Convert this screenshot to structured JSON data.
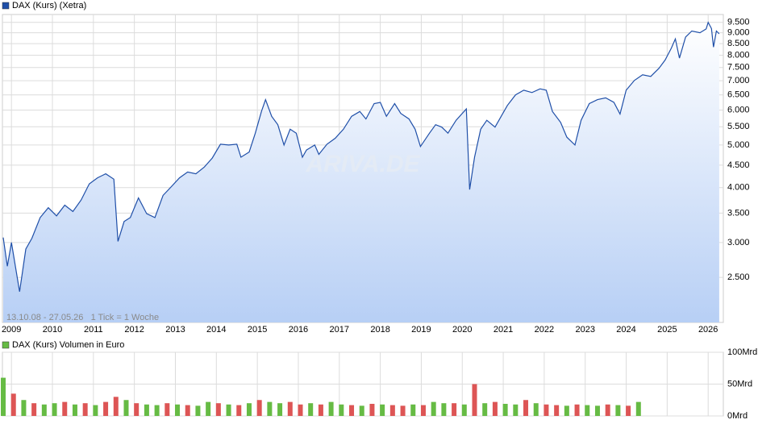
{
  "chart_data": [
    {
      "type": "line",
      "log_scale": true,
      "grid": true,
      "annotation": "13.10.08 - 27.05.26   1 Tick = 1 Woche",
      "watermark": "ARIVA.DE",
      "xlim": [
        2008.78,
        2026.37
      ],
      "xticks": [
        2009,
        2010,
        2011,
        2012,
        2013,
        2014,
        2015,
        2016,
        2017,
        2018,
        2019,
        2020,
        2021,
        2022,
        2023,
        2024,
        2025,
        2026
      ],
      "ylim": [
        1975,
        9900
      ],
      "yticks": [
        {
          "value": 2500,
          "label": "2.500"
        },
        {
          "value": 3000,
          "label": "3.000"
        },
        {
          "value": 3500,
          "label": "3.500"
        },
        {
          "value": 4000,
          "label": "4.000"
        },
        {
          "value": 4500,
          "label": "4.500"
        },
        {
          "value": 5000,
          "label": "5.000"
        },
        {
          "value": 5500,
          "label": "5.500"
        },
        {
          "value": 6000,
          "label": "6.000"
        },
        {
          "value": 6500,
          "label": "6.500"
        },
        {
          "value": 7000,
          "label": "7.000"
        },
        {
          "value": 7500,
          "label": "7.500"
        },
        {
          "value": 8000,
          "label": "8.000"
        },
        {
          "value": 8500,
          "label": "8.500"
        },
        {
          "value": 9000,
          "label": "9.000"
        },
        {
          "value": 9500,
          "label": "9.500"
        }
      ],
      "x": [
        2008.8,
        2008.9,
        2009.0,
        2009.2,
        2009.35,
        2009.5,
        2009.7,
        2009.9,
        2010.1,
        2010.3,
        2010.5,
        2010.7,
        2010.9,
        2011.1,
        2011.3,
        2011.5,
        2011.6,
        2011.75,
        2011.9,
        2012.1,
        2012.3,
        2012.5,
        2012.7,
        2012.9,
        2013.1,
        2013.3,
        2013.5,
        2013.7,
        2013.9,
        2014.1,
        2014.3,
        2014.5,
        2014.6,
        2014.8,
        2014.95,
        2015.1,
        2015.2,
        2015.35,
        2015.5,
        2015.65,
        2015.8,
        2015.95,
        2016.1,
        2016.2,
        2016.4,
        2016.5,
        2016.7,
        2016.9,
        2017.1,
        2017.3,
        2017.5,
        2017.65,
        2017.85,
        2018.0,
        2018.15,
        2018.35,
        2018.5,
        2018.7,
        2018.85,
        2018.98,
        2019.2,
        2019.35,
        2019.5,
        2019.65,
        2019.85,
        2020.1,
        2020.18,
        2020.3,
        2020.45,
        2020.6,
        2020.8,
        2020.95,
        2021.1,
        2021.3,
        2021.5,
        2021.7,
        2021.9,
        2022.05,
        2022.2,
        2022.4,
        2022.55,
        2022.75,
        2022.9,
        2023.1,
        2023.3,
        2023.5,
        2023.7,
        2023.85,
        2024.0,
        2024.2,
        2024.4,
        2024.6,
        2024.8,
        2024.95,
        2025.1,
        2025.2,
        2025.3,
        2025.45,
        2025.6,
        2025.8,
        2025.95,
        2026.0,
        2026.08,
        2026.13,
        2026.2,
        2026.27
      ],
      "series": [
        {
          "name": "DAX (Kurs) (Xetra)",
          "color": "#1f4fa8",
          "values": [
            3080,
            2650,
            3000,
            2320,
            2900,
            3070,
            3420,
            3600,
            3450,
            3650,
            3530,
            3750,
            4080,
            4210,
            4300,
            4180,
            3020,
            3350,
            3420,
            3790,
            3490,
            3420,
            3840,
            4020,
            4210,
            4340,
            4300,
            4450,
            4670,
            5020,
            5000,
            5020,
            4690,
            4820,
            5320,
            5960,
            6340,
            5810,
            5560,
            5000,
            5430,
            5320,
            4690,
            4870,
            5000,
            4760,
            5020,
            5180,
            5430,
            5810,
            5960,
            5730,
            6210,
            6250,
            5810,
            6210,
            5900,
            5730,
            5430,
            4960,
            5320,
            5560,
            5490,
            5320,
            5690,
            6040,
            3960,
            4690,
            5430,
            5690,
            5490,
            5810,
            6150,
            6500,
            6660,
            6580,
            6710,
            6660,
            5960,
            5630,
            5210,
            5000,
            5690,
            6210,
            6340,
            6400,
            6250,
            5880,
            6660,
            7010,
            7220,
            7160,
            7470,
            7800,
            8300,
            8710,
            7880,
            8800,
            9080,
            9000,
            9180,
            9500,
            9200,
            8350,
            9080,
            8950
          ]
        }
      ]
    },
    {
      "type": "bar",
      "grid": true,
      "xlim": [
        2008.78,
        2026.37
      ],
      "xticks": [
        2009,
        2010,
        2011,
        2012,
        2013,
        2014,
        2015,
        2016,
        2017,
        2018,
        2019,
        2020,
        2021,
        2022,
        2023,
        2024,
        2025,
        2026
      ],
      "ylim": [
        0,
        100
      ],
      "yticks": [
        {
          "value": 0,
          "label": "0Mrd"
        },
        {
          "value": 50,
          "label": "50Mrd"
        },
        {
          "value": 100,
          "label": "100Mrd"
        }
      ],
      "x": [
        2008.8,
        2009.05,
        2009.3,
        2009.55,
        2009.8,
        2010.05,
        2010.3,
        2010.55,
        2010.8,
        2011.05,
        2011.3,
        2011.55,
        2011.8,
        2012.05,
        2012.3,
        2012.55,
        2012.8,
        2013.05,
        2013.3,
        2013.55,
        2013.8,
        2014.05,
        2014.3,
        2014.55,
        2014.8,
        2015.05,
        2015.3,
        2015.55,
        2015.8,
        2016.05,
        2016.3,
        2016.55,
        2016.8,
        2017.05,
        2017.3,
        2017.55,
        2017.8,
        2018.05,
        2018.3,
        2018.55,
        2018.8,
        2019.05,
        2019.3,
        2019.55,
        2019.8,
        2020.05,
        2020.3,
        2020.55,
        2020.8,
        2021.05,
        2021.3,
        2021.55,
        2021.8,
        2022.05,
        2022.3,
        2022.55,
        2022.8,
        2023.05,
        2023.3,
        2023.55,
        2023.8,
        2024.05,
        2024.3
      ],
      "series": [
        {
          "name": "DAX (Kurs) Volumen in Euro",
          "color": "#66bb44",
          "values": [
            60,
            35,
            25,
            20,
            18,
            20,
            22,
            18,
            20,
            17,
            22,
            30,
            25,
            20,
            18,
            17,
            20,
            18,
            17,
            16,
            22,
            20,
            18,
            17,
            20,
            25,
            22,
            20,
            22,
            18,
            20,
            18,
            22,
            18,
            17,
            16,
            19,
            18,
            17,
            16,
            18,
            17,
            22,
            20,
            20,
            18,
            50,
            20,
            22,
            19,
            18,
            25,
            20,
            18,
            17,
            16,
            18,
            17,
            16,
            18,
            17,
            16,
            22
          ],
          "colors": [
            "#66bb44",
            "#dd5555",
            "#66bb44",
            "#dd5555",
            "#66bb44",
            "#66bb44",
            "#dd5555",
            "#66bb44",
            "#dd5555",
            "#66bb44",
            "#dd5555",
            "#dd5555",
            "#66bb44",
            "#dd5555",
            "#66bb44",
            "#66bb44",
            "#dd5555",
            "#66bb44",
            "#dd5555",
            "#66bb44",
            "#66bb44",
            "#dd5555",
            "#66bb44",
            "#dd5555",
            "#66bb44",
            "#dd5555",
            "#66bb44",
            "#66bb44",
            "#dd5555",
            "#dd5555",
            "#66bb44",
            "#dd5555",
            "#66bb44",
            "#66bb44",
            "#dd5555",
            "#66bb44",
            "#dd5555",
            "#66bb44",
            "#dd5555",
            "#dd5555",
            "#66bb44",
            "#dd5555",
            "#66bb44",
            "#66bb44",
            "#dd5555",
            "#66bb44",
            "#dd5555",
            "#66bb44",
            "#dd5555",
            "#66bb44",
            "#66bb44",
            "#dd5555",
            "#66bb44",
            "#dd5555",
            "#dd5555",
            "#66bb44",
            "#dd5555",
            "#66bb44",
            "#66bb44",
            "#dd5555",
            "#66bb44",
            "#dd5555",
            "#66bb44"
          ]
        }
      ]
    }
  ]
}
